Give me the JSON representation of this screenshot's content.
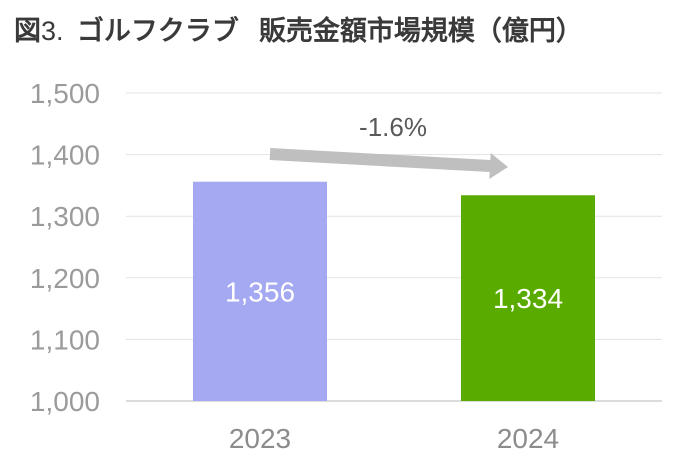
{
  "header": {
    "figure_label": "図",
    "figure_number": "3.",
    "title_main": "ゴルフクラブ",
    "title_sub": "販売金額市場規模（億円）"
  },
  "chart_data": {
    "type": "bar",
    "categories": [
      "2023",
      "2024"
    ],
    "values": [
      1356,
      1334
    ],
    "data_labels": [
      "1,356",
      "1,334"
    ],
    "colors": [
      "#a5a9f2",
      "#5aab00"
    ],
    "ylim": [
      1000,
      1500
    ],
    "yticks": [
      1000,
      1100,
      1200,
      1300,
      1400,
      1500
    ],
    "ytick_labels": [
      "1,000",
      "1,100",
      "1,200",
      "1,300",
      "1,400",
      "1,500"
    ],
    "grid": true,
    "annotation": {
      "text": "-1.6%",
      "arrow_color": "#bfbfbf"
    }
  }
}
